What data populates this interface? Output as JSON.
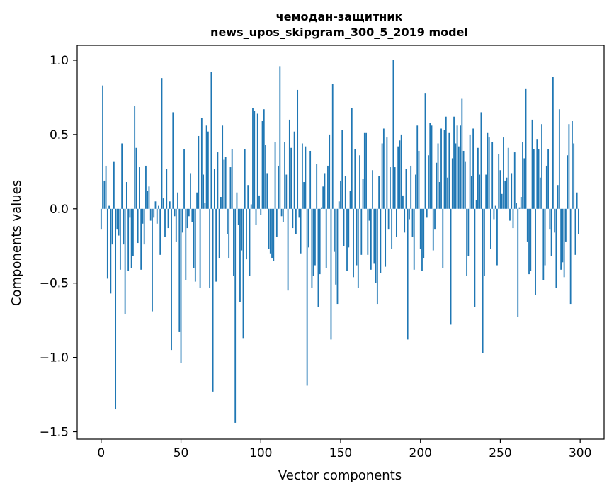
{
  "chart_data": {
    "type": "bar",
    "title": "чемодан-защитник",
    "subtitle": "news_upos_skipgram_300_5_2019 model",
    "xlabel": "Vector components",
    "ylabel": "Components values",
    "xlim": [
      -15,
      315
    ],
    "ylim": [
      -1.55,
      1.1
    ],
    "xticks": [
      0,
      50,
      100,
      150,
      200,
      250,
      300
    ],
    "yticks": [
      -1.5,
      -1.0,
      -0.5,
      0.0,
      0.5,
      1.0
    ],
    "ytick_labels": [
      "−1.5",
      "−1.0",
      "−0.5",
      "0.0",
      "0.5",
      "1.0"
    ],
    "bar_color": "#1f77b4",
    "grid": false,
    "values": [
      -0.14,
      0.83,
      0.19,
      0.29,
      -0.47,
      0.02,
      -0.57,
      -0.24,
      0.32,
      -1.35,
      -0.14,
      -0.18,
      -0.41,
      0.44,
      -0.24,
      -0.71,
      0.18,
      -0.42,
      -0.06,
      -0.4,
      -0.32,
      0.69,
      0.41,
      -0.23,
      0.28,
      -0.41,
      -0.1,
      -0.24,
      0.29,
      0.12,
      0.15,
      -0.08,
      -0.69,
      -0.06,
      0.05,
      -0.1,
      0.02,
      -0.31,
      0.88,
      0.07,
      -0.19,
      0.27,
      -0.13,
      0.05,
      -0.95,
      0.65,
      -0.05,
      -0.22,
      0.11,
      -0.83,
      -1.04,
      -0.16,
      0.4,
      -0.48,
      -0.13,
      -0.05,
      0.24,
      -0.09,
      -0.4,
      -0.49,
      0.11,
      0.49,
      -0.53,
      0.61,
      0.23,
      0.04,
      0.56,
      0.52,
      -0.53,
      0.92,
      -1.23,
      0.27,
      -0.49,
      0.38,
      -0.33,
      0.08,
      0.56,
      0.33,
      0.35,
      -0.17,
      -0.33,
      0.28,
      0.4,
      -0.45,
      -1.44,
      0.11,
      -0.11,
      -0.63,
      -0.28,
      -0.87,
      0.4,
      -0.34,
      0.16,
      -0.45,
      0.03,
      0.68,
      0.66,
      -0.11,
      0.64,
      0.09,
      -0.04,
      0.59,
      0.67,
      0.43,
      0.24,
      -0.27,
      -0.3,
      -0.33,
      -0.35,
      0.45,
      -0.19,
      0.29,
      0.96,
      -0.05,
      -0.09,
      0.45,
      0.23,
      -0.55,
      0.6,
      0.41,
      -0.13,
      0.52,
      -0.17,
      0.8,
      -0.06,
      -0.3,
      0.44,
      0.18,
      0.42,
      -1.19,
      -0.26,
      0.39,
      -0.53,
      -0.45,
      -0.38,
      0.3,
      -0.66,
      -0.44,
      0.01,
      0.15,
      0.24,
      -0.4,
      0.29,
      0.5,
      -0.88,
      0.84,
      -0.29,
      -0.51,
      -0.64,
      0.05,
      0.19,
      0.53,
      -0.25,
      0.22,
      -0.42,
      -0.26,
      0.12,
      0.68,
      -0.46,
      0.4,
      -0.38,
      -0.53,
      0.36,
      -0.31,
      0.2,
      0.51,
      0.51,
      -0.31,
      -0.08,
      -0.41,
      0.26,
      -0.37,
      -0.5,
      -0.64,
      0.22,
      -0.43,
      0.44,
      0.54,
      -0.39,
      0.48,
      -0.14,
      0.28,
      -0.27,
      1.0,
      0.28,
      -0.19,
      0.42,
      0.46,
      0.5,
      0.09,
      -0.16,
      0.27,
      -0.88,
      -0.07,
      0.29,
      -0.19,
      -0.41,
      0.23,
      0.56,
      0.39,
      -0.27,
      -0.42,
      -0.33,
      0.78,
      -0.06,
      0.36,
      0.58,
      0.56,
      -0.28,
      -0.14,
      0.31,
      0.44,
      0.18,
      0.54,
      -0.4,
      0.53,
      0.62,
      0.21,
      0.51,
      -0.78,
      0.34,
      0.62,
      0.44,
      0.56,
      0.42,
      0.56,
      0.74,
      0.39,
      0.32,
      -0.45,
      -0.32,
      0.5,
      0.22,
      0.54,
      -0.66,
      0.06,
      0.41,
      0.23,
      0.65,
      -0.97,
      -0.45,
      0.23,
      0.51,
      0.48,
      -0.27,
      0.45,
      -0.07,
      0.02,
      -0.38,
      0.37,
      0.26,
      0.1,
      0.48,
      0.19,
      0.21,
      0.41,
      -0.08,
      0.24,
      -0.13,
      0.38,
      0.04,
      -0.73,
      0.01,
      0.08,
      0.45,
      0.34,
      0.81,
      -0.22,
      -0.44,
      -0.42,
      0.6,
      0.4,
      -0.58,
      0.47,
      0.4,
      0.21,
      0.57,
      -0.48,
      -0.38,
      0.29,
      0.4,
      -0.14,
      -0.32,
      0.89,
      -0.16,
      -0.53,
      0.16,
      0.67,
      -0.41,
      -0.36,
      -0.46,
      -0.22,
      0.36,
      0.57,
      -0.64,
      0.59,
      0.44,
      -0.31,
      0.11,
      -0.17
    ]
  }
}
